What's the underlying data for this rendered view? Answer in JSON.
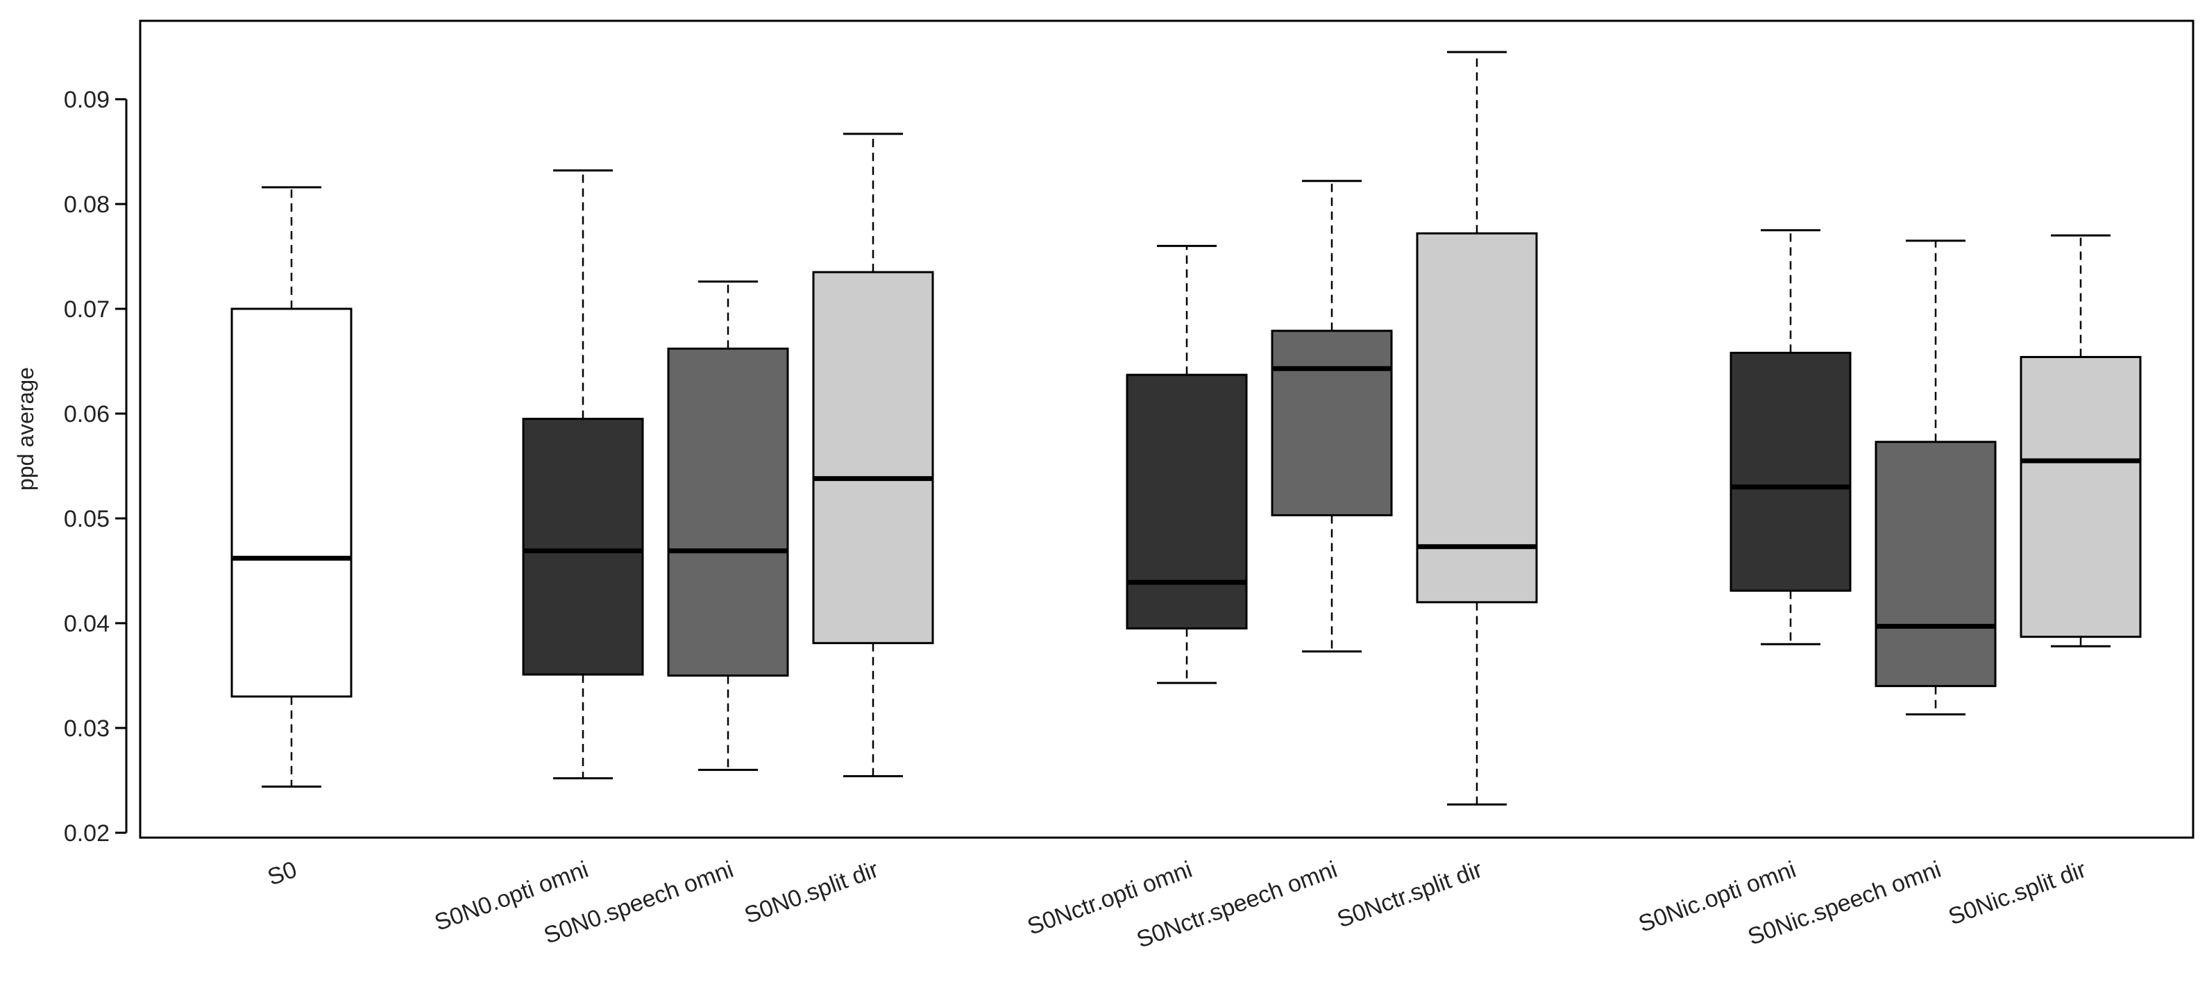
{
  "chart_data": {
    "type": "boxplot",
    "title": "",
    "xlabel": "",
    "ylabel": "ppd average",
    "ylim": [
      0.02,
      0.095
    ],
    "yticks": [
      "0.02",
      "0.03",
      "0.04",
      "0.05",
      "0.06",
      "0.07",
      "0.08",
      "0.09"
    ],
    "groups": [
      {
        "label": "S0",
        "fill": "#ffffff",
        "whisker_low": 0.0244,
        "q1": 0.033,
        "median": 0.0462,
        "q3": 0.07,
        "whisker_high": 0.0816
      },
      {
        "label": "S0N0.opti omni",
        "fill": "#333333",
        "whisker_low": 0.0252,
        "q1": 0.0351,
        "median": 0.0469,
        "q3": 0.0595,
        "whisker_high": 0.0832
      },
      {
        "label": "S0N0.speech omni",
        "fill": "#666666",
        "whisker_low": 0.026,
        "q1": 0.035,
        "median": 0.0469,
        "q3": 0.0662,
        "whisker_high": 0.0726
      },
      {
        "label": "S0N0.split dir",
        "fill": "#cccccc",
        "whisker_low": 0.0254,
        "q1": 0.0381,
        "median": 0.0538,
        "q3": 0.0735,
        "whisker_high": 0.0867
      },
      {
        "label": "S0Nctr.opti omni",
        "fill": "#333333",
        "whisker_low": 0.0343,
        "q1": 0.0395,
        "median": 0.0439,
        "q3": 0.0637,
        "whisker_high": 0.076
      },
      {
        "label": "S0Nctr.speech omni",
        "fill": "#666666",
        "whisker_low": 0.0373,
        "q1": 0.0503,
        "median": 0.0643,
        "q3": 0.0679,
        "whisker_high": 0.0822
      },
      {
        "label": "S0Nctr.split dir",
        "fill": "#cccccc",
        "whisker_low": 0.0227,
        "q1": 0.042,
        "median": 0.0473,
        "q3": 0.0772,
        "whisker_high": 0.0945
      },
      {
        "label": "S0Nic.opti omni",
        "fill": "#333333",
        "whisker_low": 0.038,
        "q1": 0.0431,
        "median": 0.053,
        "q3": 0.0658,
        "whisker_high": 0.0775
      },
      {
        "label": "S0Nic.speech omni",
        "fill": "#666666",
        "whisker_low": 0.0313,
        "q1": 0.034,
        "median": 0.0397,
        "q3": 0.0573,
        "whisker_high": 0.0765
      },
      {
        "label": "S0Nic.split dir",
        "fill": "#cccccc",
        "whisker_low": 0.0378,
        "q1": 0.0387,
        "median": 0.0555,
        "q3": 0.0654,
        "whisker_high": 0.077
      }
    ]
  }
}
